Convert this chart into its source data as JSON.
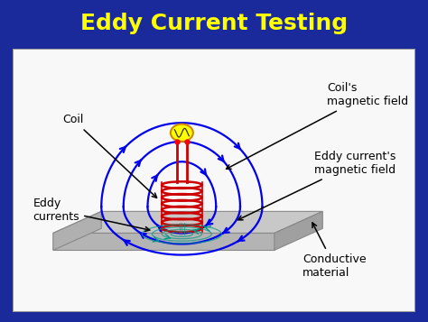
{
  "title": "Eddy Current Testing",
  "title_color": "#FFFF00",
  "title_bg_color": "#1a2a9a",
  "outer_bg_color": "#1a2a9a",
  "diagram_bg": "#f8f8f8",
  "diagram_border": "#cccccc",
  "coil_color": "#cc0000",
  "magnetic_field_color": "#0000ee",
  "eddy_current_color": "#009988",
  "plate_top_color": "#c8c8c8",
  "plate_side_color": "#a0a0a0",
  "plate_front_color": "#b4b4b4",
  "plate_edge_color": "#888888",
  "wire_color": "#cc0000",
  "vsrc_face": "#ffff00",
  "vsrc_edge": "#cc8800",
  "labels": {
    "coil": "Coil",
    "coils_field": "Coil's\nmagnetic field",
    "eddy_currents": "Eddy\ncurrents",
    "eddys_field": "Eddy current's\nmagnetic field",
    "conductive": "Conductive\nmaterial"
  },
  "label_fontsize": 9,
  "title_fontsize": 18
}
